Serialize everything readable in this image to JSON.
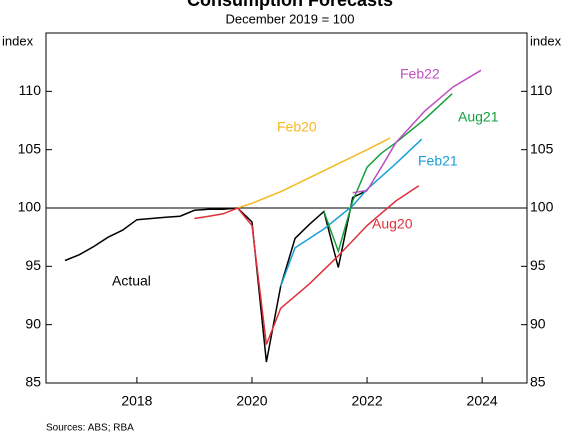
{
  "chart_data": {
    "type": "line",
    "title": "Consumption Forecasts",
    "subtitle": "December 2019 = 100",
    "y_label": "index",
    "y2_label": "index",
    "source": "Sources: ABS; RBA",
    "xlim": [
      2016.42,
      2024.78
    ],
    "xticks": [
      2018,
      2020,
      2022,
      2024
    ],
    "ylim": [
      85,
      115
    ],
    "yticks": [
      85,
      90,
      95,
      100,
      105,
      110
    ],
    "reference_line": 100,
    "series": [
      {
        "name": "Actual",
        "color": "#000000",
        "x": [
          2016.75,
          2017.0,
          2017.25,
          2017.5,
          2017.75,
          2018.0,
          2018.25,
          2018.5,
          2018.75,
          2019.0,
          2019.25,
          2019.5,
          2019.75,
          2020.0,
          2020.25,
          2020.5,
          2020.75,
          2021.0,
          2021.25,
          2021.5,
          2021.75,
          2022.0
        ],
        "values": [
          95.5,
          96.0,
          96.7,
          97.5,
          98.1,
          99.0,
          99.1,
          99.2,
          99.3,
          99.8,
          99.9,
          99.9,
          100,
          98.8,
          86.8,
          93.3,
          97.4,
          98.6,
          99.7,
          94.9,
          100.9,
          101.5
        ]
      },
      {
        "name": "Feb20",
        "color": "#f5b820",
        "x": [
          2019.75,
          2020.0,
          2020.5,
          2021.0,
          2021.5,
          2022.0,
          2022.4
        ],
        "values": [
          100,
          100.4,
          101.4,
          102.6,
          103.8,
          105.0,
          106.0
        ]
      },
      {
        "name": "Aug20",
        "color": "#e0303a",
        "x": [
          2019.0,
          2019.25,
          2019.5,
          2019.75,
          2020.0,
          2020.25,
          2020.5,
          2021.0,
          2021.5,
          2022.0,
          2022.5,
          2022.9
        ],
        "values": [
          99.1,
          99.3,
          99.5,
          100,
          98.5,
          88.3,
          91.4,
          93.5,
          95.9,
          98.5,
          100.6,
          101.9
        ]
      },
      {
        "name": "Feb21",
        "color": "#1a9fd6",
        "x": [
          2020.5,
          2020.75,
          2021.25,
          2021.75,
          2022.0,
          2022.5,
          2022.95
        ],
        "values": [
          93.3,
          96.6,
          98.2,
          100.2,
          101.6,
          103.8,
          105.9
        ]
      },
      {
        "name": "Aug21",
        "color": "#14a03c",
        "x": [
          2021.25,
          2021.5,
          2021.75,
          2022.0,
          2022.25,
          2022.5,
          2023.0,
          2023.48
        ],
        "values": [
          99.7,
          96.3,
          100.6,
          103.5,
          104.7,
          105.6,
          107.6,
          109.8
        ]
      },
      {
        "name": "Feb22",
        "color": "#bd4fc1",
        "x": [
          2021.75,
          2022.0,
          2022.25,
          2022.5,
          2023.0,
          2023.5,
          2023.98
        ],
        "values": [
          101.3,
          101.5,
          103.5,
          105.6,
          108.3,
          110.4,
          111.8
        ]
      }
    ]
  }
}
